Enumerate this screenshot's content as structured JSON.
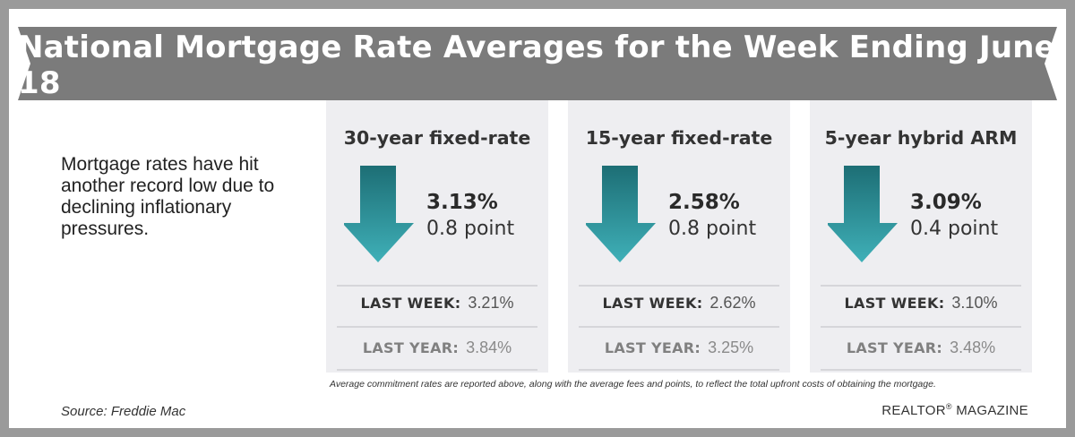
{
  "title": "National Mortgage Rate Averages for the Week Ending June 18",
  "intro_text": "Mortgage rates have hit another record low due to declining inflationary pressures.",
  "colors": {
    "banner": "#7b7b7b",
    "panel": "#eeeef1",
    "arrow_top": "#1d6e75",
    "arrow_bottom": "#3fb0b8",
    "frame": "#9a9a9a"
  },
  "chart_data": {
    "type": "table",
    "series": [
      {
        "name": "30-year fixed-rate",
        "rate": "3.13%",
        "change": "0.8 point",
        "direction": "down",
        "last_week_label": "LAST WEEK:",
        "last_week": "3.21%",
        "last_year_label": "LAST YEAR:",
        "last_year": "3.84%",
        "arrow_icon": "down-arrow-icon"
      },
      {
        "name": "15-year fixed-rate",
        "rate": "2.58%",
        "change": "0.8 point",
        "direction": "down",
        "last_week_label": "LAST WEEK:",
        "last_week": "2.62%",
        "last_year_label": "LAST YEAR:",
        "last_year": "3.25%",
        "arrow_icon": "down-arrow-icon"
      },
      {
        "name": "5-year hybrid ARM",
        "rate": "3.09%",
        "change": "0.4 point",
        "direction": "down",
        "last_week_label": "LAST WEEK:",
        "last_week": "3.10%",
        "last_year_label": "LAST YEAR:",
        "last_year": "3.48%",
        "arrow_icon": "down-arrow-icon"
      }
    ]
  },
  "footnote": "Average commitment rates are reported above, along with the average fees and points, to reflect the total upfront costs of obtaining the mortgage.",
  "source": "Source: Freddie Mac",
  "brand": {
    "name": "REALTOR",
    "mark": "®",
    "suffix": " MAGAZINE"
  }
}
